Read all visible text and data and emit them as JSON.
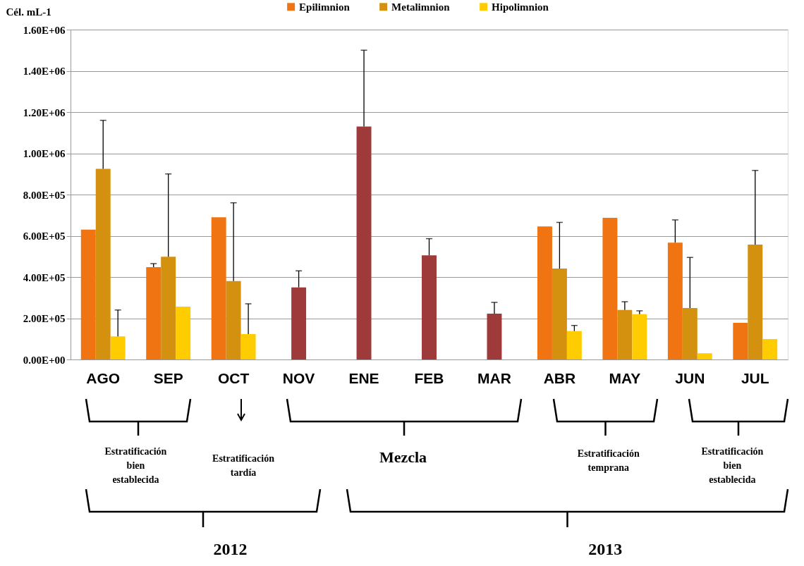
{
  "chart_data": {
    "type": "bar",
    "ylabel": "Cél. mL-1",
    "categories": [
      "AGO",
      "SEP",
      "OCT",
      "NOV",
      "ENE",
      "FEB",
      "MAR",
      "ABR",
      "MAY",
      "JUN",
      "JUL"
    ],
    "series": [
      {
        "name": "Epilimnion",
        "color": "#f07412",
        "values": [
          630000,
          448000,
          690000,
          null,
          null,
          null,
          null,
          645000,
          687000,
          567000,
          178000
        ],
        "errors": [
          null,
          [
            448000,
            465000
          ],
          null,
          null,
          null,
          null,
          null,
          null,
          null,
          [
            567000,
            677000
          ],
          null
        ]
      },
      {
        "name": "Metalimnion",
        "color": "#d4900f",
        "values": [
          925000,
          498000,
          380000,
          null,
          null,
          null,
          null,
          441000,
          240000,
          250000,
          557000
        ],
        "errors": [
          [
            925000,
            1160000
          ],
          [
            498000,
            900000
          ],
          [
            380000,
            760000
          ],
          null,
          null,
          null,
          null,
          [
            441000,
            665000
          ],
          [
            240000,
            280000
          ],
          [
            250000,
            495000
          ],
          [
            557000,
            917000
          ]
        ]
      },
      {
        "name": "Hipolimnion",
        "color": "#ffcc00",
        "values": [
          112000,
          256000,
          123000,
          null,
          null,
          null,
          null,
          138000,
          220000,
          30000,
          99000
        ],
        "errors": [
          [
            112000,
            240000
          ],
          null,
          [
            123000,
            270000
          ],
          null,
          null,
          null,
          null,
          [
            138000,
            165000
          ],
          [
            220000,
            236000
          ],
          null,
          null
        ]
      },
      {
        "color": "#9e3b3a",
        "values": [
          null,
          null,
          null,
          350000,
          1130000,
          505000,
          222000,
          null,
          null,
          null,
          null
        ],
        "errors": [
          null,
          null,
          null,
          [
            350000,
            430000
          ],
          [
            1130000,
            1500000
          ],
          [
            505000,
            586000
          ],
          [
            222000,
            277000
          ],
          null,
          null,
          null,
          null
        ]
      }
    ],
    "ylim": [
      0,
      1600000
    ],
    "yticks": [
      {
        "value": 0,
        "label": "0.00E+00"
      },
      {
        "value": 200000,
        "label": "2.00E+05"
      },
      {
        "value": 400000,
        "label": "4.00E+05"
      },
      {
        "value": 600000,
        "label": "6.00E+05"
      },
      {
        "value": 800000,
        "label": "8.00E+05"
      },
      {
        "value": 1000000,
        "label": "1.00E+06"
      },
      {
        "value": 1200000,
        "label": "1.20E+06"
      },
      {
        "value": 1400000,
        "label": "1.40E+06"
      },
      {
        "value": 1600000,
        "label": "1.60E+06"
      }
    ],
    "grid": "y",
    "legend": "top",
    "annotations": [
      "Estratificación bien establecida",
      "Estratificación tardía",
      "Mezcla",
      "Estratificación temprana",
      "Estratificación bien establecida",
      "2012",
      "2013"
    ]
  }
}
